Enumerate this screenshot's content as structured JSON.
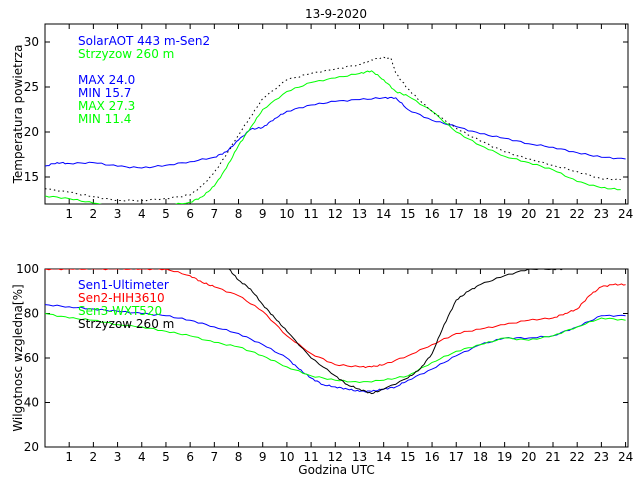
{
  "chart_data": [
    {
      "type": "line",
      "title": "13-9-2020",
      "xlabel": "",
      "ylabel": "Temperatura powietrza",
      "xlim": [
        0,
        24.1
      ],
      "ylim": [
        12,
        32
      ],
      "xticks": [
        1,
        2,
        3,
        4,
        5,
        6,
        7,
        8,
        9,
        10,
        11,
        12,
        13,
        14,
        15,
        16,
        17,
        18,
        19,
        20,
        21,
        22,
        23,
        24
      ],
      "yticks": [
        15,
        20,
        25,
        30
      ],
      "legend_position": "top-left",
      "annotations": [
        {
          "text": "MAX 24.0",
          "color": "#0000ff"
        },
        {
          "text": "MIN 15.7",
          "color": "#0000ff"
        },
        {
          "text": "MAX 27.3",
          "color": "#00ff00"
        },
        {
          "text": "MIN 11.4",
          "color": "#00ff00"
        }
      ],
      "series": [
        {
          "name": "SolarAOT 443 m-Sen2",
          "color": "#0000ff",
          "dash": "solid",
          "x": [
            0,
            0.5,
            1,
            2,
            3,
            4,
            5,
            6,
            7,
            7.5,
            8,
            8.5,
            9,
            9.5,
            10,
            11,
            12,
            13,
            14,
            14.5,
            15,
            16,
            17,
            18,
            19,
            20,
            21,
            22,
            23,
            24
          ],
          "y": [
            16.2,
            16.6,
            16.5,
            16.6,
            16.2,
            16.0,
            16.3,
            16.7,
            17.2,
            17.8,
            19.1,
            20.3,
            20.5,
            21.5,
            22.3,
            23.0,
            23.4,
            23.6,
            23.8,
            23.8,
            22.5,
            21.3,
            20.6,
            19.8,
            19.3,
            18.7,
            18.3,
            17.7,
            17.2,
            17.0
          ]
        },
        {
          "name": "Strzyzow 260 m",
          "color": "#00ff00",
          "dash": "solid",
          "x": [
            0,
            1,
            2,
            3,
            4,
            5,
            6,
            6.5,
            7,
            7.5,
            8,
            8.5,
            9,
            10,
            11,
            12,
            13,
            13.5,
            14,
            14.5,
            15,
            16,
            17,
            18,
            19,
            20,
            21,
            22,
            23,
            23.8
          ],
          "y": [
            12.9,
            12.6,
            12.1,
            11.6,
            11.5,
            11.8,
            12.2,
            12.8,
            14.0,
            16.0,
            18.5,
            20.5,
            22.5,
            24.5,
            25.5,
            26.0,
            26.5,
            26.8,
            25.8,
            24.5,
            24.0,
            22.3,
            20.0,
            18.5,
            17.3,
            16.6,
            15.8,
            14.5,
            13.8,
            13.6
          ]
        },
        {
          "name": "",
          "color": "#000000",
          "dash": "dotted",
          "x": [
            0,
            1,
            2,
            3,
            4,
            5,
            6,
            6.5,
            7,
            7.5,
            8,
            8.5,
            9,
            10,
            11,
            12,
            13,
            13.5,
            14,
            14.3,
            14.5,
            15,
            15.5,
            16,
            17,
            18,
            19,
            20,
            21,
            22,
            23,
            23.8
          ],
          "y": [
            13.7,
            13.3,
            12.8,
            12.4,
            12.4,
            12.6,
            13.0,
            14.0,
            15.5,
            17.5,
            19.7,
            21.7,
            23.7,
            25.8,
            26.5,
            27.0,
            27.5,
            28.0,
            28.3,
            28.2,
            26.5,
            24.8,
            23.5,
            22.3,
            20.4,
            19.0,
            17.8,
            17.0,
            16.3,
            15.6,
            14.8,
            14.7
          ]
        }
      ]
    },
    {
      "type": "line",
      "title": "",
      "xlabel": "Godzina UTC",
      "ylabel": "Wilgotnosc wzgledna[%]",
      "xlim": [
        0,
        24.1
      ],
      "ylim": [
        20,
        100
      ],
      "xticks": [
        1,
        2,
        3,
        4,
        5,
        6,
        7,
        8,
        9,
        10,
        11,
        12,
        13,
        14,
        15,
        16,
        17,
        18,
        19,
        20,
        21,
        22,
        23,
        24
      ],
      "yticks": [
        20,
        40,
        60,
        80,
        100
      ],
      "legend_position": "top-left",
      "series": [
        {
          "name": "Sen1-Ultimeter",
          "color": "#0000ff",
          "x": [
            0,
            1,
            2,
            3,
            4,
            5,
            6,
            7,
            8,
            9,
            10,
            10.5,
            11,
            11.5,
            12,
            12.5,
            13,
            13.5,
            14,
            14.5,
            15,
            16,
            17,
            18,
            19,
            20,
            21,
            22,
            23,
            24
          ],
          "y": [
            84,
            83,
            82,
            81,
            80,
            79,
            77,
            74,
            71,
            66,
            60,
            55,
            51,
            48,
            47,
            46,
            45,
            45,
            46,
            47,
            50,
            55,
            61,
            66,
            69,
            69,
            70,
            74,
            79,
            79
          ]
        },
        {
          "name": "Sen2-HIH3610",
          "color": "#ff0000",
          "x": [
            0,
            1,
            2,
            3,
            4,
            5,
            6,
            6.5,
            7,
            8,
            9,
            10,
            11,
            12,
            13,
            13.5,
            14,
            15,
            16,
            17,
            18,
            19,
            20,
            21,
            21.5,
            22,
            22.5,
            23,
            23.5,
            24
          ],
          "y": [
            100,
            100,
            100,
            100,
            100,
            100,
            97,
            94,
            92,
            88,
            81,
            70,
            62,
            57,
            56,
            56,
            57,
            61,
            66,
            71,
            73,
            75,
            77,
            78,
            80,
            82,
            88,
            92,
            93,
            93
          ]
        },
        {
          "name": "Sen3-WXT520",
          "color": "#00ff00",
          "x": [
            0,
            1,
            2,
            3,
            4,
            5,
            6,
            7,
            8,
            9,
            10,
            11,
            12,
            13,
            14,
            15,
            16,
            17,
            18,
            19,
            20,
            21,
            22,
            23,
            24
          ],
          "y": [
            80,
            78,
            77,
            75,
            74,
            72,
            70,
            67,
            65,
            61,
            56,
            52,
            50,
            49,
            50,
            52,
            58,
            63,
            66,
            69,
            68,
            70,
            74,
            78,
            77
          ]
        },
        {
          "name": "Strzyzow 260 m",
          "color": "#000000",
          "x": [
            7.6,
            8,
            8.5,
            9,
            9.5,
            10,
            11,
            12,
            12.5,
            13,
            13.5,
            14,
            15,
            15.5,
            16,
            16.5,
            17,
            17.5,
            18,
            19,
            20,
            21,
            21.5
          ],
          "y": [
            100,
            95,
            91,
            84,
            78,
            72,
            60,
            52,
            48,
            46,
            44,
            46,
            51,
            55,
            62,
            75,
            86,
            90,
            93,
            97,
            100,
            100,
            100
          ]
        }
      ]
    }
  ]
}
